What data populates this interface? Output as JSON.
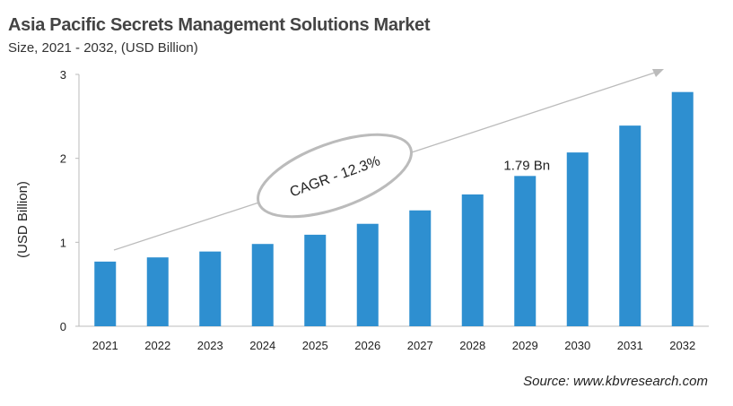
{
  "title": "Asia Pacific Secrets Management Solutions Market",
  "subtitle": "Size, 2021 - 2032, (USD Billion)",
  "source": "Source: www.kbvresearch.com",
  "chart_data": {
    "type": "bar",
    "title": "Asia Pacific Secrets Management Solutions Market",
    "subtitle": "Size, 2021 - 2032, (USD Billion)",
    "xlabel": "",
    "ylabel": "(USD Billion)",
    "ylim": [
      0,
      3
    ],
    "yticks": [
      0,
      1,
      2,
      3
    ],
    "grid": false,
    "categories": [
      "2021",
      "2022",
      "2023",
      "2024",
      "2025",
      "2026",
      "2027",
      "2028",
      "2029",
      "2030",
      "2031",
      "2032"
    ],
    "values": [
      0.77,
      0.82,
      0.89,
      0.98,
      1.09,
      1.22,
      1.38,
      1.57,
      1.79,
      2.07,
      2.39,
      2.79
    ],
    "bar_color": "#2E8FD0",
    "annotations": [
      {
        "text": "1.79 Bn",
        "category": "2029"
      },
      {
        "text": "CAGR - 12.3%"
      }
    ]
  }
}
